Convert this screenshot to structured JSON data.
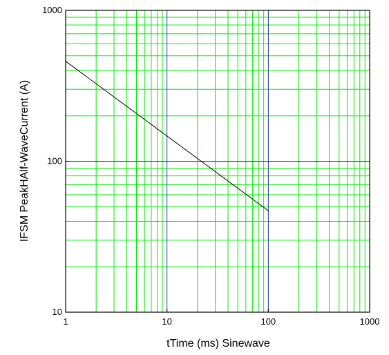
{
  "chart_data": {
    "type": "line",
    "title": "",
    "xlabel": "tTime   (ms)  Sinewave",
    "ylabel": "IFSM PeakHAlf-WaveCurrent  (A)",
    "x_scale": "log",
    "y_scale": "log",
    "xlim": [
      1,
      1000
    ],
    "ylim": [
      10,
      1000
    ],
    "grid": true,
    "legend": "none",
    "x_ticks": [
      1,
      10,
      100,
      1000
    ],
    "x_tick_labels": [
      "1",
      "10",
      "100",
      "1000"
    ],
    "y_ticks": [
      10,
      100,
      1000
    ],
    "y_tick_labels": [
      "10",
      "100",
      "1000"
    ],
    "colors": {
      "minor_grid": "#00ee00",
      "major_grid": "#2233aa",
      "frame": "#000000",
      "series": "#000000"
    },
    "series": [
      {
        "x": [
          1,
          100
        ],
        "y": [
          460,
          47
        ]
      }
    ]
  }
}
